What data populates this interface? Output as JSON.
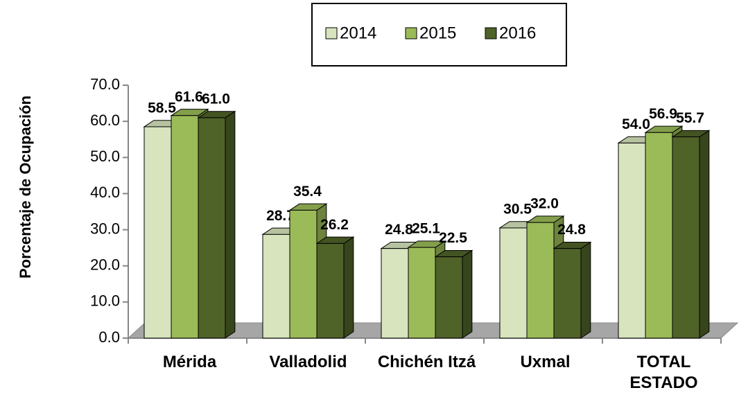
{
  "chart_data": {
    "type": "bar3d",
    "y_label": "Porcentaje de Ocupación",
    "categories": [
      "Mérida",
      "Valladolid",
      "Chichén Itzá",
      "Uxmal",
      "TOTAL ESTADO"
    ],
    "series": [
      {
        "name": "2014",
        "color": "#d7e4bd",
        "values": [
          58.5,
          28.7,
          24.8,
          30.5,
          54.0
        ],
        "value_labels": [
          "58.5",
          "28.7",
          "24.8",
          "30.5",
          "54.0"
        ]
      },
      {
        "name": "2015",
        "color": "#9bbb59",
        "values": [
          61.6,
          35.4,
          25.1,
          32.0,
          56.9
        ],
        "value_labels": [
          "61.6",
          "35.4",
          "25.1",
          "32.0",
          "56.9"
        ]
      },
      {
        "name": "2016",
        "color": "#4f6228",
        "values": [
          61.0,
          26.2,
          22.5,
          24.8,
          55.7
        ],
        "value_labels": [
          "61.0",
          "26.2",
          "22.5",
          "24.8",
          "55.7"
        ]
      }
    ],
    "ylim": [
      0,
      70
    ],
    "yticks": [
      {
        "value": 0,
        "label": "0.0"
      },
      {
        "value": 10,
        "label": "10.0"
      },
      {
        "value": 20,
        "label": "20.0"
      },
      {
        "value": 30,
        "label": "30.0"
      },
      {
        "value": 40,
        "label": "40.0"
      },
      {
        "value": 50,
        "label": "50.0"
      },
      {
        "value": 60,
        "label": "60.0"
      },
      {
        "value": 70,
        "label": "70.0"
      }
    ],
    "legend": "top"
  }
}
